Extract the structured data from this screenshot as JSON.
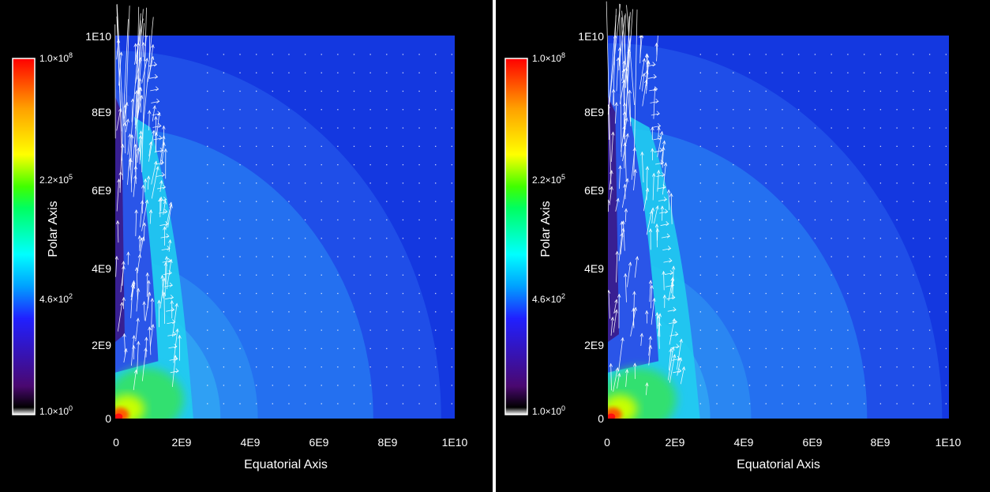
{
  "chart_data": [
    {
      "type": "heatmap",
      "panel": "left",
      "xlabel": "Equatorial Axis",
      "ylabel": "Polar Axis",
      "xlim": [
        0,
        10000000000
      ],
      "ylim": [
        0,
        10000000000
      ],
      "x_ticks": [
        "0",
        "2E9",
        "4E9",
        "6E9",
        "8E9",
        "1E10"
      ],
      "y_ticks": [
        "0",
        "2E9",
        "4E9",
        "6E9",
        "8E9",
        "1E10"
      ],
      "colorbar": {
        "scale": "log",
        "range": [
          1,
          100000000
        ],
        "labels": [
          {
            "mantissa": "1.0×10",
            "exp": "0"
          },
          {
            "mantissa": "4.6×10",
            "exp": "2"
          },
          {
            "mantissa": "2.2×10",
            "exp": "5"
          },
          {
            "mantissa": "1.0×10",
            "exp": "8"
          }
        ],
        "colormap": [
          "#ffffff",
          "#000000",
          "#4a0870",
          "#2020ff",
          "#00a0ff",
          "#00ffff",
          "#00ff60",
          "#40ff00",
          "#ffff00",
          "#ffa000",
          "#ff0000"
        ]
      },
      "background_color": "#1a5cff",
      "overlay": "velocity-arrows",
      "shell_radii": [
        9600000000,
        7600000000,
        4200000000,
        3100000000
      ],
      "jet_half_width": 2300000000
    },
    {
      "type": "heatmap",
      "panel": "right",
      "xlabel": "Equatorial Axis",
      "ylabel": "Polar Axis",
      "xlim": [
        0,
        10000000000
      ],
      "ylim": [
        0,
        10000000000
      ],
      "x_ticks": [
        "0",
        "2E9",
        "4E9",
        "6E9",
        "8E9",
        "1E10"
      ],
      "y_ticks": [
        "0",
        "2E9",
        "4E9",
        "6E9",
        "8E9",
        "1E10"
      ],
      "colorbar": {
        "scale": "log",
        "range": [
          1,
          100000000
        ],
        "labels": [
          {
            "mantissa": "1.0×10",
            "exp": "0"
          },
          {
            "mantissa": "4.6×10",
            "exp": "2"
          },
          {
            "mantissa": "2.2×10",
            "exp": "5"
          },
          {
            "mantissa": "1.0×10",
            "exp": "8"
          }
        ],
        "colormap": [
          "#ffffff",
          "#000000",
          "#4a0870",
          "#2020ff",
          "#00a0ff",
          "#00ffff",
          "#00ff60",
          "#40ff00",
          "#ffff00",
          "#ffa000",
          "#ff0000"
        ]
      },
      "background_color": "#1a5cff",
      "overlay": "velocity-arrows",
      "shell_radii": [
        9800000000,
        7600000000,
        4200000000,
        3000000000
      ],
      "jet_half_width": 2700000000
    }
  ]
}
